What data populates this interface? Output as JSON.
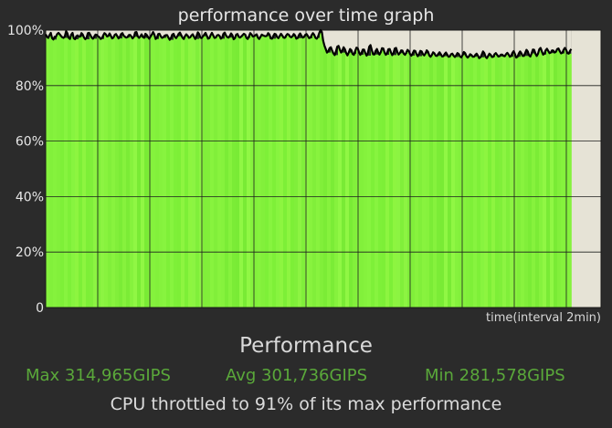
{
  "chart_data": {
    "type": "line",
    "title": "performance over time graph",
    "xlabel": "time(interval 2min)",
    "ylim": [
      0,
      100
    ],
    "y_ticks": [
      "0",
      "20%",
      "40%",
      "60%",
      "80%",
      "100%"
    ],
    "grid": true,
    "series": [
      {
        "values": [
          98.5,
          97.6,
          97.2,
          98.2,
          99.0,
          97.1,
          96.6,
          97.6,
          97.6,
          98.6,
          99.0,
          98.5,
          97.9,
          97.4,
          97.2,
          97.8,
          99.6,
          98.8,
          97.2,
          96.8,
          98.4,
          99.0,
          97.0,
          96.7,
          97.8,
          98.1,
          97.6,
          97.7,
          98.9,
          98.4,
          97.3,
          96.7,
          97.3,
          98.9,
          99.0,
          98.2,
          97.3,
          96.9,
          97.7,
          98.4,
          98.3,
          97.7,
          97.5,
          96.8,
          97.1,
          98.1,
          98.9,
          98.5,
          97.7,
          97.9,
          98.8,
          97.9,
          97.0,
          97.3,
          98.3,
          98.6,
          97.8,
          97.0,
          97.6,
          98.6,
          98.9,
          98.0,
          97.6,
          97.3,
          97.5,
          98.2,
          98.3,
          97.7,
          97.0,
          97.6,
          99.2,
          99.3,
          97.8,
          97.2,
          97.7,
          98.5,
          97.5,
          97.2,
          98.7,
          98.3,
          97.5,
          96.9,
          97.7,
          98.4,
          99.3,
          98.4,
          96.8,
          97.2,
          98.6,
          98.7,
          97.8,
          97.2,
          97.4,
          98.0,
          98.2,
          98.2,
          97.3,
          96.5,
          97.2,
          98.4,
          98.7,
          97.6,
          97.1,
          97.8,
          98.7,
          99.1,
          98.2,
          97.3,
          96.8,
          97.9,
          98.5,
          98.0,
          97.2,
          97.4,
          98.1,
          98.5,
          97.6,
          96.8,
          97.9,
          99.2,
          98.6,
          97.3,
          97.1,
          97.8,
          98.4,
          99.0,
          98.0,
          96.9,
          97.1,
          98.2,
          99.0,
          98.1,
          97.2,
          97.3,
          98.1,
          98.3,
          97.9,
          96.9,
          97.3,
          98.7,
          99.1,
          98.1,
          97.5,
          97.3,
          97.9,
          98.8,
          98.2,
          96.7,
          97.1,
          98.4,
          98.6,
          97.6,
          97.3,
          97.7,
          98.2,
          98.7,
          98.4,
          97.2,
          96.8,
          97.8,
          98.9,
          98.4,
          97.7,
          97.8,
          98.2,
          98.5,
          97.3,
          96.8,
          97.6,
          98.4,
          98.1,
          97.9,
          97.8,
          98.0,
          98.9,
          98.4,
          97.0,
          96.9,
          97.9,
          98.7,
          98.5,
          97.5,
          97.1,
          97.9,
          98.7,
          98.1,
          97.3,
          97.2,
          98.0,
          98.6,
          98.4,
          97.7,
          97.4,
          97.8,
          98.6,
          98.1,
          96.9,
          97.1,
          98.2,
          98.8,
          98.0,
          97.3,
          97.5,
          98.3,
          98.6,
          97.9,
          97.1,
          97.3,
          98.2,
          98.9,
          98.3,
          97.2,
          96.9,
          97.7,
          99.0,
          100.0,
          99.3,
          96.2,
          94.4,
          93.2,
          91.9,
          92.4,
          93.5,
          93.8,
          92.6,
          91.6,
          91.0,
          92.3,
          94.0,
          94.3,
          93.0,
          91.9,
          92.7,
          93.8,
          93.1,
          91.7,
          90.9,
          91.9,
          93.2,
          92.8,
          91.4,
          91.1,
          92.4,
          93.7,
          93.5,
          92.1,
          91.1,
          91.8,
          93.0,
          93.0,
          91.6,
          90.8,
          91.9,
          94.0,
          94.6,
          92.9,
          91.3,
          91.2,
          92.5,
          93.2,
          92.0,
          91.2,
          92.0,
          93.5,
          93.4,
          91.9,
          91.1,
          91.8,
          93.1,
          93.2,
          92.0,
          91.0,
          91.7,
          93.4,
          93.6,
          92.1,
          91.2,
          91.7,
          92.7,
          92.6,
          91.5,
          91.1,
          91.9,
          92.9,
          92.4,
          91.3,
          90.8,
          91.6,
          92.6,
          92.5,
          91.3,
          90.6,
          91.4,
          92.5,
          92.3,
          91.3,
          90.9,
          91.6,
          92.7,
          92.2,
          90.9,
          90.4,
          91.1,
          92.0,
          91.6,
          90.8,
          90.7,
          91.4,
          92.0,
          91.3,
          90.5,
          90.6,
          91.4,
          91.9,
          91.2,
          90.4,
          90.5,
          91.3,
          91.5,
          90.8,
          90.3,
          90.9,
          91.7,
          91.4,
          90.5,
          90.2,
          91.0,
          92.1,
          91.7,
          90.6,
          90.1,
          90.6,
          91.3,
          91.0,
          90.4,
          90.4,
          91.1,
          91.5,
          90.8,
          89.9,
          90.2,
          91.2,
          92.3,
          91.7,
          90.4,
          89.9,
          90.7,
          91.5,
          91.1,
          90.3,
          90.4,
          91.3,
          91.7,
          91.1,
          90.5,
          90.6,
          91.2,
          91.2,
          90.7,
          90.6,
          91.3,
          91.8,
          91.2,
          90.4,
          90.7,
          91.8,
          92.4,
          91.3,
          90.1,
          90.4,
          91.6,
          92.3,
          91.6,
          90.7,
          90.7,
          91.8,
          92.9,
          92.3,
          90.9,
          90.5,
          91.6,
          93.0,
          92.9,
          91.5,
          90.7,
          91.5,
          93.1,
          93.6,
          92.3,
          91.2,
          91.5,
          92.7,
          93.3,
          92.5,
          91.7,
          91.9,
          92.7,
          92.6,
          91.9,
          92.2,
          93.2,
          93.4,
          92.4,
          91.6,
          91.8,
          92.9,
          93.6,
          92.9,
          91.7,
          91.5,
          92.5,
          93.2
        ]
      }
    ],
    "highlight_band": {
      "start_index": 440,
      "end_index": 460
    },
    "bar_colors": [
      "#85f23d",
      "#7ef038",
      "#8df540",
      "#80ef3a",
      "#88f33e",
      "#7bec36",
      "#90f744",
      "#82f03b",
      "#87f43f",
      "#7def37",
      "#8cf442",
      "#81ef3a",
      "#86f23d",
      "#79eb35"
    ],
    "colors": {
      "line": "#000000",
      "highlight": "#2a3cc8",
      "remaining": "#e6e3d6",
      "grid": "#1e1e1e",
      "axis_text": "#e6e6e6"
    }
  },
  "summary": {
    "heading": "Performance",
    "max": "Max 314,965GIPS",
    "avg": "Avg 301,736GIPS",
    "min": "Min 281,578GIPS",
    "throttle": "CPU throttled to 91% of its max performance"
  }
}
